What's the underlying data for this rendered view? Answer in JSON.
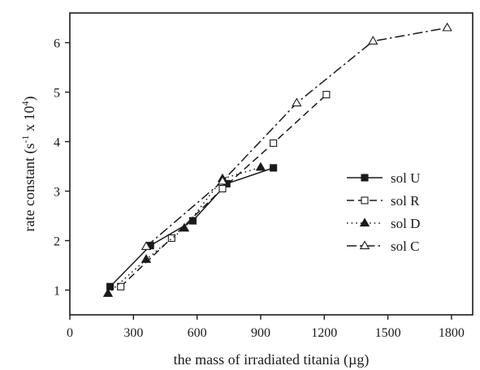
{
  "chart_data": {
    "type": "line",
    "title": "",
    "xlabel": "the mass of irradiated titania (µg)",
    "ylabel_parts": {
      "before": "rate constant (s",
      "exp1": "-1",
      "middle": " x 10",
      "exp2": "4",
      "after": ")"
    },
    "xlim": [
      0,
      1900
    ],
    "ylim": [
      0.5,
      6.6
    ],
    "xticks": [
      0,
      300,
      600,
      900,
      1200,
      1500,
      1800
    ],
    "yticks": [
      1,
      2,
      3,
      4,
      5,
      6
    ],
    "grid": false,
    "legend_position": "right-middle",
    "series": [
      {
        "name": "sol U",
        "line": "solid",
        "marker": "square-filled",
        "x": [
          190,
          380,
          580,
          740,
          960
        ],
        "y": [
          1.07,
          1.9,
          2.4,
          3.15,
          3.47
        ]
      },
      {
        "name": "sol R",
        "line": "dashed",
        "marker": "square-open",
        "x": [
          240,
          480,
          720,
          960,
          1210
        ],
        "y": [
          1.07,
          2.05,
          3.05,
          3.97,
          4.95
        ]
      },
      {
        "name": "sol D",
        "line": "dotted",
        "marker": "triangle-filled",
        "x": [
          180,
          360,
          540,
          720,
          900
        ],
        "y": [
          0.93,
          1.62,
          2.25,
          3.25,
          3.48
        ]
      },
      {
        "name": "sol C",
        "line": "dashdot",
        "marker": "triangle-open",
        "x": [
          360,
          720,
          1070,
          1430,
          1780
        ],
        "y": [
          1.88,
          3.2,
          4.78,
          6.03,
          6.3
        ]
      }
    ]
  }
}
